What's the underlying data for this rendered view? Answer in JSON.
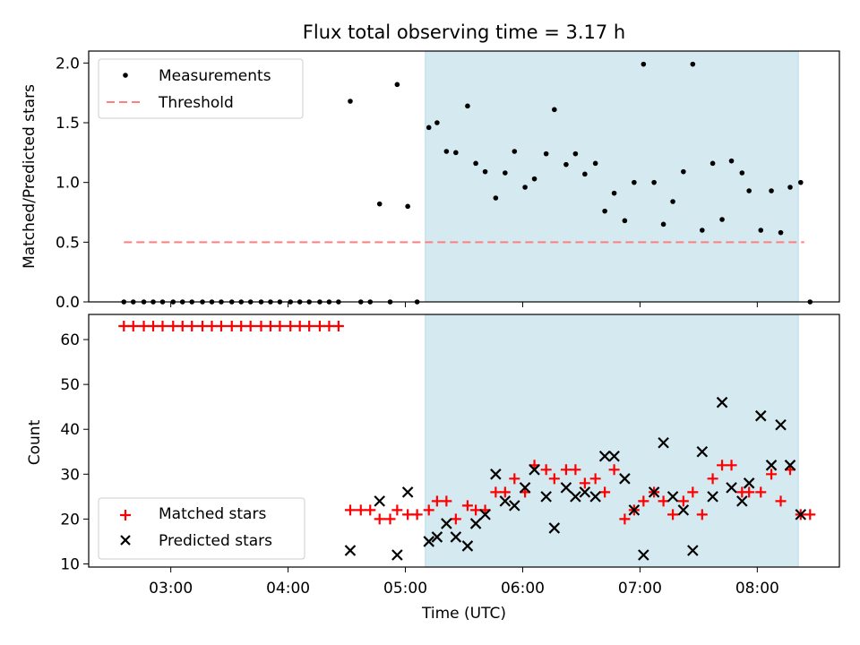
{
  "chart_data": {
    "title": "Flux total observing time = 3.17 h",
    "xlabel": "Time (UTC)",
    "x_ticks": [
      "03:00",
      "04:00",
      "05:00",
      "06:00",
      "07:00",
      "08:00"
    ],
    "x_tick_hours": [
      3,
      4,
      5,
      6,
      7,
      8
    ],
    "xlim_hours": [
      2.3,
      8.7
    ],
    "shaded_region_hours": [
      5.17,
      8.35
    ],
    "shade_color": "#d4e9f0",
    "panels": [
      {
        "type": "scatter",
        "ylabel": "Matched/Predicted stars",
        "ylim": [
          0,
          2.1
        ],
        "y_ticks": [
          "0.0",
          "0.5",
          "1.0",
          "1.5",
          "2.0"
        ],
        "y_tick_values": [
          0,
          0.5,
          1.0,
          1.5,
          2.0
        ],
        "legend_position": "upper left",
        "threshold": 0.5,
        "threshold_x_range": [
          2.6,
          8.4
        ],
        "threshold_color": "#ff7f7f",
        "series": [
          {
            "name": "Measurements",
            "marker": "dot",
            "color": "#000000",
            "points": [
              [
                2.6,
                0
              ],
              [
                2.68,
                0
              ],
              [
                2.77,
                0
              ],
              [
                2.85,
                0
              ],
              [
                2.93,
                0
              ],
              [
                3.02,
                0
              ],
              [
                3.1,
                0
              ],
              [
                3.18,
                0
              ],
              [
                3.27,
                0
              ],
              [
                3.35,
                0
              ],
              [
                3.43,
                0
              ],
              [
                3.52,
                0
              ],
              [
                3.6,
                0
              ],
              [
                3.68,
                0
              ],
              [
                3.77,
                0
              ],
              [
                3.85,
                0
              ],
              [
                3.93,
                0
              ],
              [
                4.02,
                0
              ],
              [
                4.1,
                0
              ],
              [
                4.18,
                0
              ],
              [
                4.27,
                0
              ],
              [
                4.35,
                0
              ],
              [
                4.43,
                0
              ],
              [
                4.53,
                1.68
              ],
              [
                4.62,
                0
              ],
              [
                4.7,
                0
              ],
              [
                4.78,
                0.82
              ],
              [
                4.87,
                0
              ],
              [
                4.93,
                1.82
              ],
              [
                5.02,
                0.8
              ],
              [
                5.1,
                0
              ],
              [
                5.2,
                1.46
              ],
              [
                5.27,
                1.5
              ],
              [
                5.35,
                1.26
              ],
              [
                5.43,
                1.25
              ],
              [
                5.53,
                1.64
              ],
              [
                5.6,
                1.16
              ],
              [
                5.68,
                1.09
              ],
              [
                5.77,
                0.87
              ],
              [
                5.85,
                1.08
              ],
              [
                5.93,
                1.26
              ],
              [
                6.02,
                0.96
              ],
              [
                6.1,
                1.03
              ],
              [
                6.2,
                1.24
              ],
              [
                6.27,
                1.61
              ],
              [
                6.37,
                1.15
              ],
              [
                6.45,
                1.24
              ],
              [
                6.53,
                1.07
              ],
              [
                6.62,
                1.16
              ],
              [
                6.7,
                0.76
              ],
              [
                6.78,
                0.91
              ],
              [
                6.87,
                0.68
              ],
              [
                6.95,
                1.0
              ],
              [
                7.03,
                1.99
              ],
              [
                7.12,
                1.0
              ],
              [
                7.2,
                0.65
              ],
              [
                7.28,
                0.84
              ],
              [
                7.37,
                1.09
              ],
              [
                7.45,
                1.99
              ],
              [
                7.53,
                0.6
              ],
              [
                7.62,
                1.16
              ],
              [
                7.7,
                0.69
              ],
              [
                7.78,
                1.18
              ],
              [
                7.87,
                1.08
              ],
              [
                7.93,
                0.93
              ],
              [
                8.03,
                0.6
              ],
              [
                8.12,
                0.93
              ],
              [
                8.2,
                0.58
              ],
              [
                8.28,
                0.96
              ],
              [
                8.37,
                1.0
              ],
              [
                8.45,
                0
              ]
            ]
          },
          {
            "name": "Threshold",
            "marker": "dashed-line",
            "color": "#ff7f7f"
          }
        ]
      },
      {
        "type": "scatter",
        "ylabel": "Count",
        "ylim": [
          9.3,
          65.6
        ],
        "y_ticks": [
          "10",
          "20",
          "30",
          "40",
          "50",
          "60"
        ],
        "y_tick_values": [
          10,
          20,
          30,
          40,
          50,
          60
        ],
        "legend_position": "lower left",
        "series": [
          {
            "name": "Matched stars",
            "marker": "plus",
            "color": "#ff0000",
            "points": [
              [
                2.6,
                63
              ],
              [
                2.68,
                63
              ],
              [
                2.77,
                63
              ],
              [
                2.85,
                63
              ],
              [
                2.93,
                63
              ],
              [
                3.02,
                63
              ],
              [
                3.1,
                63
              ],
              [
                3.18,
                63
              ],
              [
                3.27,
                63
              ],
              [
                3.35,
                63
              ],
              [
                3.43,
                63
              ],
              [
                3.52,
                63
              ],
              [
                3.6,
                63
              ],
              [
                3.68,
                63
              ],
              [
                3.77,
                63
              ],
              [
                3.85,
                63
              ],
              [
                3.93,
                63
              ],
              [
                4.02,
                63
              ],
              [
                4.1,
                63
              ],
              [
                4.18,
                63
              ],
              [
                4.27,
                63
              ],
              [
                4.35,
                63
              ],
              [
                4.43,
                63
              ],
              [
                4.53,
                22
              ],
              [
                4.62,
                22
              ],
              [
                4.7,
                22
              ],
              [
                4.78,
                20
              ],
              [
                4.87,
                20
              ],
              [
                4.93,
                22
              ],
              [
                5.02,
                21
              ],
              [
                5.1,
                21
              ],
              [
                5.2,
                22
              ],
              [
                5.27,
                24
              ],
              [
                5.35,
                24
              ],
              [
                5.43,
                20
              ],
              [
                5.53,
                23
              ],
              [
                5.6,
                22
              ],
              [
                5.68,
                22
              ],
              [
                5.77,
                26
              ],
              [
                5.85,
                26
              ],
              [
                5.93,
                29
              ],
              [
                6.02,
                26
              ],
              [
                6.1,
                32
              ],
              [
                6.2,
                31
              ],
              [
                6.27,
                29
              ],
              [
                6.37,
                31
              ],
              [
                6.45,
                31
              ],
              [
                6.53,
                28
              ],
              [
                6.62,
                29
              ],
              [
                6.7,
                26
              ],
              [
                6.78,
                31
              ],
              [
                6.87,
                20
              ],
              [
                6.95,
                22
              ],
              [
                7.03,
                24
              ],
              [
                7.12,
                26
              ],
              [
                7.2,
                24
              ],
              [
                7.28,
                21
              ],
              [
                7.37,
                24
              ],
              [
                7.45,
                26
              ],
              [
                7.53,
                21
              ],
              [
                7.62,
                29
              ],
              [
                7.7,
                32
              ],
              [
                7.78,
                32
              ],
              [
                7.87,
                26
              ],
              [
                7.93,
                26
              ],
              [
                8.03,
                26
              ],
              [
                8.12,
                30
              ],
              [
                8.2,
                24
              ],
              [
                8.28,
                31
              ],
              [
                8.37,
                21
              ],
              [
                8.45,
                21
              ]
            ]
          },
          {
            "name": "Predicted stars",
            "marker": "x",
            "color": "#000000",
            "points": [
              [
                4.53,
                13
              ],
              [
                4.78,
                24
              ],
              [
                4.93,
                12
              ],
              [
                5.02,
                26
              ],
              [
                5.2,
                15
              ],
              [
                5.27,
                16
              ],
              [
                5.35,
                19
              ],
              [
                5.43,
                16
              ],
              [
                5.53,
                14
              ],
              [
                5.6,
                19
              ],
              [
                5.68,
                21
              ],
              [
                5.77,
                30
              ],
              [
                5.85,
                24
              ],
              [
                5.93,
                23
              ],
              [
                6.02,
                27
              ],
              [
                6.1,
                31
              ],
              [
                6.2,
                25
              ],
              [
                6.27,
                18
              ],
              [
                6.37,
                27
              ],
              [
                6.45,
                25
              ],
              [
                6.53,
                26
              ],
              [
                6.62,
                25
              ],
              [
                6.7,
                34
              ],
              [
                6.78,
                34
              ],
              [
                6.87,
                29
              ],
              [
                6.95,
                22
              ],
              [
                7.03,
                12
              ],
              [
                7.12,
                26
              ],
              [
                7.2,
                37
              ],
              [
                7.28,
                25
              ],
              [
                7.37,
                22
              ],
              [
                7.45,
                13
              ],
              [
                7.53,
                35
              ],
              [
                7.62,
                25
              ],
              [
                7.7,
                46
              ],
              [
                7.78,
                27
              ],
              [
                7.87,
                24
              ],
              [
                7.93,
                28
              ],
              [
                8.03,
                43
              ],
              [
                8.12,
                32
              ],
              [
                8.2,
                41
              ],
              [
                8.28,
                32
              ],
              [
                8.37,
                21
              ]
            ]
          }
        ]
      }
    ]
  }
}
